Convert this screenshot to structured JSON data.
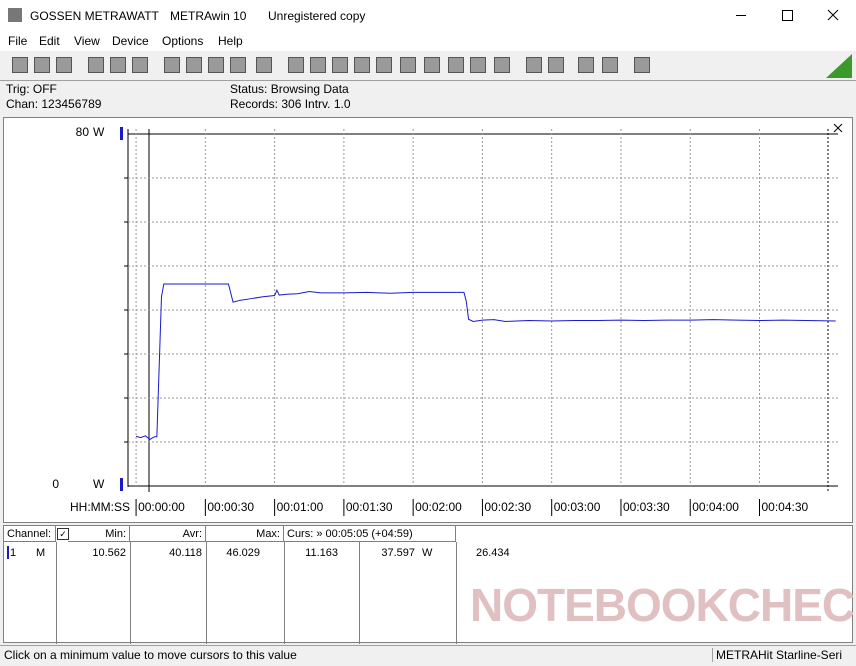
{
  "window": {
    "title_parts": [
      "GOSSEN METRAWATT",
      "METRAwin 10",
      "Unregistered copy"
    ]
  },
  "menu": [
    "File",
    "Edit",
    "View",
    "Device",
    "Options",
    "Help"
  ],
  "info": {
    "trig": "Trig: OFF",
    "chan": "Chan:  123456789",
    "status": "Status:  Browsing Data",
    "records": "Records: 306   Intrv. 1.0"
  },
  "chart_data": {
    "type": "line",
    "color": "#1a1acc",
    "y_unit": "W",
    "xlabel": "HH:MM:SS",
    "xlim": [
      -3.5,
      304
    ],
    "ylim": [
      0,
      80
    ],
    "yticks": [
      0,
      80
    ],
    "ygrid": [
      10,
      20,
      30,
      40,
      50,
      60,
      70
    ],
    "grid": true,
    "xticks": [
      {
        "value": 0,
        "label": "00:00:00"
      },
      {
        "value": 30,
        "label": "00:00:30"
      },
      {
        "value": 60,
        "label": "00:01:00"
      },
      {
        "value": 90,
        "label": "00:01:30"
      },
      {
        "value": 120,
        "label": "00:02:00"
      },
      {
        "value": 150,
        "label": "00:02:30"
      },
      {
        "value": 180,
        "label": "00:03:00"
      },
      {
        "value": 210,
        "label": "00:03:30"
      },
      {
        "value": 240,
        "label": "00:04:00"
      },
      {
        "value": 270,
        "label": "00:04:30"
      }
    ],
    "x": [
      0,
      2,
      4,
      6,
      8,
      9,
      11,
      12,
      20,
      30,
      40,
      42,
      45,
      50,
      55,
      60,
      61,
      62,
      66,
      70,
      75,
      80,
      90,
      100,
      110,
      120,
      130,
      142,
      143,
      144,
      146,
      150,
      155,
      160,
      170,
      180,
      190,
      200,
      210,
      220,
      230,
      240,
      250,
      260,
      270,
      280,
      290,
      303
    ],
    "values": [
      11.3,
      11.0,
      11.4,
      10.6,
      11.2,
      11.2,
      43,
      45.9,
      45.9,
      45.9,
      45.9,
      41.8,
      42.2,
      42.6,
      43.0,
      43.3,
      44.5,
      43.4,
      43.6,
      43.7,
      44.2,
      43.9,
      43.9,
      44.0,
      43.8,
      44.0,
      44.0,
      44.0,
      42,
      37.9,
      37.4,
      37.7,
      37.8,
      37.4,
      37.6,
      37.5,
      37.6,
      37.6,
      37.7,
      37.6,
      37.7,
      37.7,
      37.8,
      37.7,
      37.6,
      37.7,
      37.6,
      37.5
    ]
  },
  "table": {
    "header": [
      "Channel:",
      "Min:",
      "Avr:",
      "Max:",
      "Curs: » 00:05:05 (+04:59)"
    ],
    "rows": [
      [
        "1",
        "M",
        "10.562",
        "40.118",
        "46.029",
        "11.163",
        "37.597",
        "W",
        "26.434"
      ]
    ]
  },
  "statusbar": [
    "Click on a minimum value to move cursors to this value",
    "METRAHit Starline-Seri"
  ],
  "watermark": "NOTEBOOKCHECK"
}
